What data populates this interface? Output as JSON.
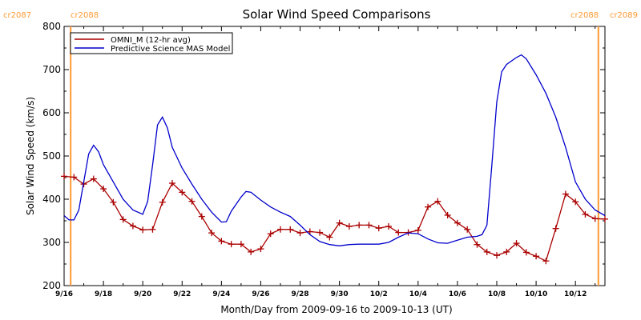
{
  "chart_data": {
    "type": "line",
    "title": "Solar Wind Speed Comparisons",
    "xlabel": "Month/Day from 2009-09-16 to 2009-10-13 (UT)",
    "ylabel": "Solar Wind Speed (km/s)",
    "ylim": [
      200,
      800
    ],
    "yticks": [
      200,
      300,
      400,
      500,
      600,
      700,
      800
    ],
    "xlim": [
      "2009-09-16",
      "2009-10-13"
    ],
    "xticks": [
      "9/16",
      "9/18",
      "9/20",
      "9/22",
      "9/24",
      "9/26",
      "9/28",
      "9/30",
      "10/2",
      "10/4",
      "10/6",
      "10/8",
      "10/10",
      "10/12"
    ],
    "legend_position": "top-left",
    "rotation_markers": [
      {
        "date": "2009-09-16T08:00",
        "label_left": "cr2087",
        "label_right": "cr2088",
        "side": "left",
        "color": "#FF9933"
      },
      {
        "date": "2009-10-13T04:00",
        "label_left": "cr2088",
        "label_right": "cr2089",
        "side": "right",
        "color": "#FF9933"
      }
    ],
    "series": [
      {
        "name": "OMNI_M (12-hr avg)",
        "color": "#AA0000",
        "marker": "+",
        "points": [
          [
            "2009-09-16T00:00",
            453
          ],
          [
            "2009-09-16T12:00",
            451
          ],
          [
            "2009-09-17T00:00",
            435
          ],
          [
            "2009-09-17T12:00",
            447
          ],
          [
            "2009-09-18T00:00",
            424
          ],
          [
            "2009-09-18T12:00",
            393
          ],
          [
            "2009-09-19T00:00",
            353
          ],
          [
            "2009-09-19T12:00",
            338
          ],
          [
            "2009-09-20T00:00",
            329
          ],
          [
            "2009-09-20T12:00",
            330
          ],
          [
            "2009-09-21T00:00",
            393
          ],
          [
            "2009-09-21T12:00",
            437
          ],
          [
            "2009-09-22T00:00",
            416
          ],
          [
            "2009-09-22T12:00",
            395
          ],
          [
            "2009-09-23T00:00",
            360
          ],
          [
            "2009-09-23T12:00",
            322
          ],
          [
            "2009-09-24T00:00",
            303
          ],
          [
            "2009-09-24T12:00",
            296
          ],
          [
            "2009-09-25T00:00",
            296
          ],
          [
            "2009-09-25T12:00",
            278
          ],
          [
            "2009-09-26T00:00",
            285
          ],
          [
            "2009-09-26T12:00",
            320
          ],
          [
            "2009-09-27T00:00",
            330
          ],
          [
            "2009-09-27T12:00",
            330
          ],
          [
            "2009-09-28T00:00",
            322
          ],
          [
            "2009-09-28T12:00",
            325
          ],
          [
            "2009-09-29T00:00",
            323
          ],
          [
            "2009-09-29T12:00",
            312
          ],
          [
            "2009-09-30T00:00",
            345
          ],
          [
            "2009-09-30T12:00",
            337
          ],
          [
            "2009-10-01T00:00",
            340
          ],
          [
            "2009-10-01T12:00",
            340
          ],
          [
            "2009-10-02T00:00",
            333
          ],
          [
            "2009-10-02T12:00",
            337
          ],
          [
            "2009-10-03T00:00",
            323
          ],
          [
            "2009-10-03T12:00",
            323
          ],
          [
            "2009-10-04T00:00",
            328
          ],
          [
            "2009-10-04T12:00",
            382
          ],
          [
            "2009-10-05T00:00",
            395
          ],
          [
            "2009-10-05T12:00",
            363
          ],
          [
            "2009-10-06T00:00",
            345
          ],
          [
            "2009-10-06T12:00",
            330
          ],
          [
            "2009-10-07T00:00",
            295
          ],
          [
            "2009-10-07T12:00",
            278
          ],
          [
            "2009-10-08T00:00",
            270
          ],
          [
            "2009-10-08T12:00",
            278
          ],
          [
            "2009-10-09T00:00",
            298
          ],
          [
            "2009-10-09T12:00",
            277
          ],
          [
            "2009-10-10T00:00",
            268
          ],
          [
            "2009-10-10T12:00",
            257
          ],
          [
            "2009-10-11T00:00",
            332
          ],
          [
            "2009-10-11T12:00",
            412
          ],
          [
            "2009-10-12T00:00",
            394
          ],
          [
            "2009-10-12T12:00",
            365
          ],
          [
            "2009-10-13T00:00",
            355
          ],
          [
            "2009-10-13T12:00",
            354
          ]
        ]
      },
      {
        "name": "Predictive Science MAS Model",
        "color": "#0000CC",
        "marker": "none",
        "points": [
          [
            "2009-09-16T00:00",
            362
          ],
          [
            "2009-09-16T06:00",
            352
          ],
          [
            "2009-09-16T12:00",
            352
          ],
          [
            "2009-09-16T18:00",
            375
          ],
          [
            "2009-09-17T00:00",
            440
          ],
          [
            "2009-09-17T06:00",
            505
          ],
          [
            "2009-09-17T12:00",
            525
          ],
          [
            "2009-09-17T18:00",
            510
          ],
          [
            "2009-09-18T00:00",
            480
          ],
          [
            "2009-09-18T12:00",
            440
          ],
          [
            "2009-09-19T00:00",
            400
          ],
          [
            "2009-09-19T12:00",
            375
          ],
          [
            "2009-09-20T00:00",
            365
          ],
          [
            "2009-09-20T06:00",
            395
          ],
          [
            "2009-09-20T12:00",
            480
          ],
          [
            "2009-09-20T18:00",
            572
          ],
          [
            "2009-09-21T00:00",
            590
          ],
          [
            "2009-09-21T06:00",
            565
          ],
          [
            "2009-09-21T12:00",
            520
          ],
          [
            "2009-09-22T00:00",
            472
          ],
          [
            "2009-09-22T12:00",
            435
          ],
          [
            "2009-09-23T00:00",
            400
          ],
          [
            "2009-09-23T12:00",
            370
          ],
          [
            "2009-09-24T00:00",
            347
          ],
          [
            "2009-09-24T06:00",
            348
          ],
          [
            "2009-09-24T12:00",
            372
          ],
          [
            "2009-09-25T00:00",
            405
          ],
          [
            "2009-09-25T06:00",
            418
          ],
          [
            "2009-09-25T12:00",
            416
          ],
          [
            "2009-09-26T00:00",
            398
          ],
          [
            "2009-09-26T12:00",
            382
          ],
          [
            "2009-09-27T00:00",
            370
          ],
          [
            "2009-09-27T12:00",
            360
          ],
          [
            "2009-09-28T00:00",
            340
          ],
          [
            "2009-09-28T12:00",
            318
          ],
          [
            "2009-09-29T00:00",
            302
          ],
          [
            "2009-09-29T12:00",
            295
          ],
          [
            "2009-09-30T00:00",
            292
          ],
          [
            "2009-09-30T12:00",
            295
          ],
          [
            "2009-10-01T00:00",
            296
          ],
          [
            "2009-10-02T00:00",
            296
          ],
          [
            "2009-10-02T12:00",
            300
          ],
          [
            "2009-10-03T00:00",
            312
          ],
          [
            "2009-10-03T12:00",
            322
          ],
          [
            "2009-10-04T00:00",
            320
          ],
          [
            "2009-10-04T12:00",
            308
          ],
          [
            "2009-10-05T00:00",
            299
          ],
          [
            "2009-10-05T12:00",
            298
          ],
          [
            "2009-10-06T00:00",
            305
          ],
          [
            "2009-10-06T12:00",
            312
          ],
          [
            "2009-10-07T00:00",
            314
          ],
          [
            "2009-10-07T06:00",
            318
          ],
          [
            "2009-10-07T12:00",
            340
          ],
          [
            "2009-10-07T18:00",
            480
          ],
          [
            "2009-10-08T00:00",
            625
          ],
          [
            "2009-10-08T06:00",
            695
          ],
          [
            "2009-10-08T12:00",
            712
          ],
          [
            "2009-10-09T00:00",
            728
          ],
          [
            "2009-10-09T06:00",
            734
          ],
          [
            "2009-10-09T12:00",
            725
          ],
          [
            "2009-10-10T00:00",
            688
          ],
          [
            "2009-10-10T12:00",
            645
          ],
          [
            "2009-10-11T00:00",
            590
          ],
          [
            "2009-10-11T12:00",
            520
          ],
          [
            "2009-10-12T00:00",
            440
          ],
          [
            "2009-10-12T12:00",
            400
          ],
          [
            "2009-10-13T00:00",
            375
          ],
          [
            "2009-10-13T12:00",
            362
          ]
        ]
      }
    ]
  }
}
